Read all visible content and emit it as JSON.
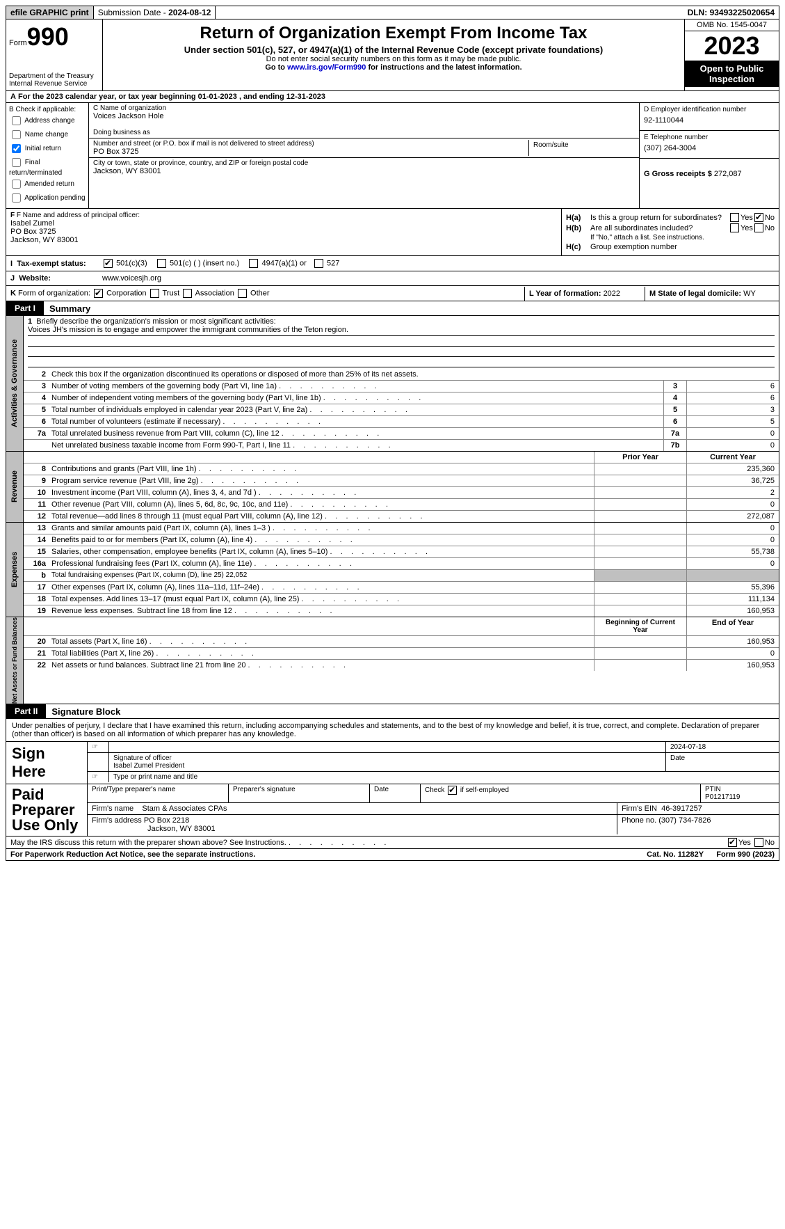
{
  "topbar": {
    "efile": "efile GRAPHIC print",
    "sub_label": "Submission Date - ",
    "sub_date": "2024-08-12",
    "dln_label": "DLN: ",
    "dln": "93493225020654"
  },
  "header": {
    "form_word": "Form",
    "form_no": "990",
    "dept": "Department of the Treasury\nInternal Revenue Service",
    "title": "Return of Organization Exempt From Income Tax",
    "sub": "Under section 501(c), 527, or 4947(a)(1) of the Internal Revenue Code (except private foundations)",
    "small1": "Do not enter social security numbers on this form as it may be made public.",
    "small2_pre": "Go to ",
    "small2_link": "www.irs.gov/Form990",
    "small2_post": " for instructions and the latest information.",
    "omb": "OMB No. 1545-0047",
    "year": "2023",
    "public": "Open to Public Inspection"
  },
  "line_a": "For the 2023 calendar year, or tax year beginning 01-01-2023    , and ending 12-31-2023",
  "b": {
    "header": "B Check if applicable:",
    "addr": "Address change",
    "name": "Name change",
    "init": "Initial return",
    "init_checked": true,
    "final": "Final return/terminated",
    "amend": "Amended return",
    "app": "Application pending"
  },
  "c": {
    "label": "C Name of organization",
    "name": "Voices Jackson Hole",
    "dba_label": "Doing business as",
    "dba": "",
    "addr_label": "Number and street (or P.O. box if mail is not delivered to street address)",
    "addr": "PO Box 3725",
    "room_label": "Room/suite",
    "city_label": "City or town, state or province, country, and ZIP or foreign postal code",
    "city": "Jackson, WY  83001"
  },
  "d": {
    "label": "D Employer identification number",
    "value": "92-1110044"
  },
  "e": {
    "label": "E Telephone number",
    "value": "(307) 264-3004"
  },
  "g": {
    "label": "G Gross receipts $ ",
    "value": "272,087"
  },
  "f": {
    "label": "F  Name and address of principal officer:",
    "name": "Isabel Zumel",
    "addr1": "PO Box 3725",
    "addr2": "Jackson, WY  83001"
  },
  "h": {
    "a": "Is this a group return for subordinates?",
    "a_no": true,
    "b": "Are all subordinates included?",
    "b_note": "If \"No,\" attach a list. See instructions.",
    "c": "Group exemption number",
    "tag_a": "H(a)",
    "tag_b": "H(b)",
    "tag_c": "H(c)"
  },
  "i": {
    "label": "Tax-exempt status:",
    "opt1": "501(c)(3)",
    "opt1_checked": true,
    "opt2": "501(c) (  ) (insert no.)",
    "opt3": "4947(a)(1) or",
    "opt4": "527"
  },
  "j": {
    "label": "Website:",
    "value": "www.voicesjh.org"
  },
  "k": {
    "label": "K Form of organization:",
    "corp": "Corporation",
    "corp_checked": true,
    "trust": "Trust",
    "assoc": "Association",
    "other": "Other"
  },
  "l": {
    "label": "L Year of formation: ",
    "value": "2022"
  },
  "m": {
    "label": "M State of legal domicile: ",
    "value": "WY"
  },
  "part1": {
    "num": "Part I",
    "title": "Summary"
  },
  "mission": {
    "label": "Briefly describe the organization's mission or most significant activities:",
    "text": "Voices JH's mission is to engage and empower the immigrant communities of the Teton region."
  },
  "line2": "Check this box  if the organization discontinued its operations or disposed of more than 25% of its net assets.",
  "gov_rows": [
    {
      "n": "3",
      "d": "Number of voting members of the governing body (Part VI, line 1a)",
      "box": "3",
      "v": "6"
    },
    {
      "n": "4",
      "d": "Number of independent voting members of the governing body (Part VI, line 1b)",
      "box": "4",
      "v": "6"
    },
    {
      "n": "5",
      "d": "Total number of individuals employed in calendar year 2023 (Part V, line 2a)",
      "box": "5",
      "v": "3"
    },
    {
      "n": "6",
      "d": "Total number of volunteers (estimate if necessary)",
      "box": "6",
      "v": "5"
    },
    {
      "n": "7a",
      "d": "Total unrelated business revenue from Part VIII, column (C), line 12",
      "box": "7a",
      "v": "0"
    },
    {
      "n": "",
      "d": "Net unrelated business taxable income from Form 990-T, Part I, line 11",
      "box": "7b",
      "v": "0"
    }
  ],
  "rev_hdr": {
    "prior": "Prior Year",
    "curr": "Current Year"
  },
  "rev_rows": [
    {
      "n": "8",
      "d": "Contributions and grants (Part VIII, line 1h)",
      "p": "",
      "c": "235,360"
    },
    {
      "n": "9",
      "d": "Program service revenue (Part VIII, line 2g)",
      "p": "",
      "c": "36,725"
    },
    {
      "n": "10",
      "d": "Investment income (Part VIII, column (A), lines 3, 4, and 7d )",
      "p": "",
      "c": "2"
    },
    {
      "n": "11",
      "d": "Other revenue (Part VIII, column (A), lines 5, 6d, 8c, 9c, 10c, and 11e)",
      "p": "",
      "c": "0"
    },
    {
      "n": "12",
      "d": "Total revenue—add lines 8 through 11 (must equal Part VIII, column (A), line 12)",
      "p": "",
      "c": "272,087"
    }
  ],
  "exp_rows": [
    {
      "n": "13",
      "d": "Grants and similar amounts paid (Part IX, column (A), lines 1–3 )",
      "p": "",
      "c": "0"
    },
    {
      "n": "14",
      "d": "Benefits paid to or for members (Part IX, column (A), line 4)",
      "p": "",
      "c": "0"
    },
    {
      "n": "15",
      "d": "Salaries, other compensation, employee benefits (Part IX, column (A), lines 5–10)",
      "p": "",
      "c": "55,738"
    },
    {
      "n": "16a",
      "d": "Professional fundraising fees (Part IX, column (A), line 11e)",
      "p": "",
      "c": "0"
    },
    {
      "n": "b",
      "d": "Total fundraising expenses (Part IX, column (D), line 25) 22,052",
      "shade": true
    },
    {
      "n": "17",
      "d": "Other expenses (Part IX, column (A), lines 11a–11d, 11f–24e)",
      "p": "",
      "c": "55,396"
    },
    {
      "n": "18",
      "d": "Total expenses. Add lines 13–17 (must equal Part IX, column (A), line 25)",
      "p": "",
      "c": "111,134"
    },
    {
      "n": "19",
      "d": "Revenue less expenses. Subtract line 18 from line 12",
      "p": "",
      "c": "160,953"
    }
  ],
  "na_hdr": {
    "beg": "Beginning of Current Year",
    "end": "End of Year"
  },
  "na_rows": [
    {
      "n": "20",
      "d": "Total assets (Part X, line 16)",
      "p": "",
      "c": "160,953"
    },
    {
      "n": "21",
      "d": "Total liabilities (Part X, line 26)",
      "p": "",
      "c": "0"
    },
    {
      "n": "22",
      "d": "Net assets or fund balances. Subtract line 21 from line 20",
      "p": "",
      "c": "160,953"
    }
  ],
  "vlabels": {
    "gov": "Activities & Governance",
    "rev": "Revenue",
    "exp": "Expenses",
    "na": "Net Assets or Fund Balances"
  },
  "part2": {
    "num": "Part II",
    "title": "Signature Block"
  },
  "penalty": "Under penalties of perjury, I declare that I have examined this return, including accompanying schedules and statements, and to the best of my knowledge and belief, it is true, correct, and complete. Declaration of preparer (other than officer) is based on all information of which preparer has any knowledge.",
  "sign": {
    "label": "Sign Here",
    "date": "2024-07-18",
    "sig_label": "Signature of officer",
    "name": "Isabel Zumel  President",
    "name_label": "Type or print name and title",
    "date_label": "Date"
  },
  "prep": {
    "label": "Paid Preparer Use Only",
    "h1": "Print/Type preparer's name",
    "h2": "Preparer's signature",
    "h3": "Date",
    "se_label": "Check  if self-employed",
    "se_checked": true,
    "ptin_label": "PTIN",
    "ptin": "P01217119",
    "firm_label": "Firm's name",
    "firm": "Stam & Associates CPAs",
    "ein_label": "Firm's EIN",
    "ein": "46-3917257",
    "addr_label": "Firm's address",
    "addr1": "PO Box 2218",
    "addr2": "Jackson, WY  83001",
    "phone_label": "Phone no.",
    "phone": "(307) 734-7826"
  },
  "discuss": {
    "q": "May the IRS discuss this return with the preparer shown above? See Instructions.",
    "yes_checked": true
  },
  "footer": {
    "left": "For Paperwork Reduction Act Notice, see the separate instructions.",
    "mid": "Cat. No. 11282Y",
    "right": "Form 990 (2023)"
  },
  "yes": "Yes",
  "no": "No",
  "colors": {
    "bg": "#ffffff",
    "shade": "#c0c0c0",
    "border": "#000000"
  }
}
